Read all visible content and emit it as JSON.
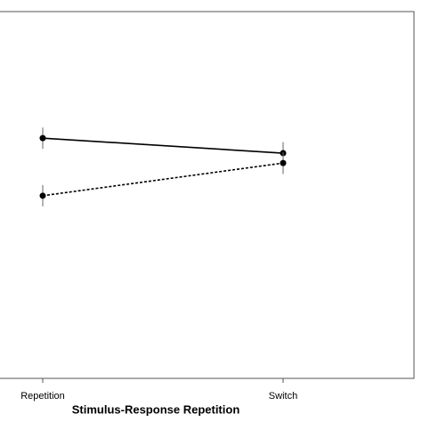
{
  "chart_data": {
    "type": "line",
    "x_label": "Stimulus-Response Repetition",
    "categories": [
      "Repetition",
      "Switch"
    ],
    "series": [
      {
        "color": "#000000",
        "dashed": false,
        "values": [
          65.5,
          61.4
        ],
        "errors": [
          2.9,
          3.0
        ]
      },
      {
        "color": "#000000",
        "dashed": true,
        "values": [
          49.8,
          58.7
        ],
        "errors": [
          2.9,
          3.0
        ]
      }
    ],
    "ylim": [
      0,
      100
    ]
  }
}
